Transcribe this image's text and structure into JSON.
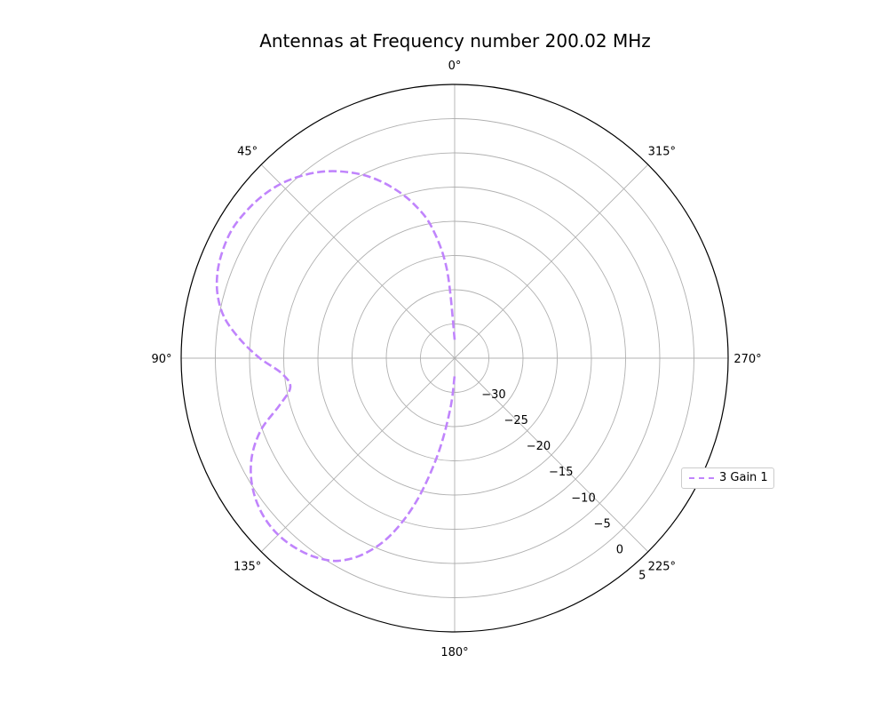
{
  "chart_data": {
    "type": "line",
    "subtype": "polar",
    "title": "Antennas at Frequency number 200.02 MHz",
    "theta_zero_location": "top",
    "theta_direction": "counterclockwise",
    "theta_ticks": [
      "0°",
      "45°",
      "90°",
      "135°",
      "180°",
      "225°",
      "270°",
      "315°"
    ],
    "r_ticks": [
      "−30",
      "−25",
      "−20",
      "−15",
      "−10",
      "−5",
      "0",
      "5"
    ],
    "rlim": [
      -35,
      5
    ],
    "grid": true,
    "legend_position": "right",
    "series": [
      {
        "name": "3 Gain 1",
        "color": "#c084fc",
        "linestyle": "dashed",
        "theta_deg": [
          0,
          5,
          10,
          15,
          20,
          25,
          30,
          35,
          40,
          45,
          50,
          55,
          60,
          65,
          70,
          75,
          80,
          85,
          90,
          95,
          100,
          105,
          110,
          115,
          120,
          125,
          130,
          135,
          140,
          145,
          150,
          155,
          160,
          165,
          170,
          175,
          180
        ],
        "r_db": [
          -32.3,
          -22.0,
          -15.5,
          -11.6,
          -8.5,
          -5.8,
          -3.6,
          -1.7,
          -0.2,
          1.0,
          1.8,
          2.3,
          2.6,
          2.4,
          1.9,
          0.9,
          -0.8,
          -3.5,
          -6.5,
          -9.6,
          -10.6,
          -8.5,
          -5.0,
          -2.4,
          -0.6,
          0.6,
          1.3,
          1.5,
          1.2,
          0.5,
          -0.8,
          -3.4,
          -7.4,
          -13.3,
          -20.6,
          -27.5,
          -32.5
        ]
      }
    ]
  }
}
